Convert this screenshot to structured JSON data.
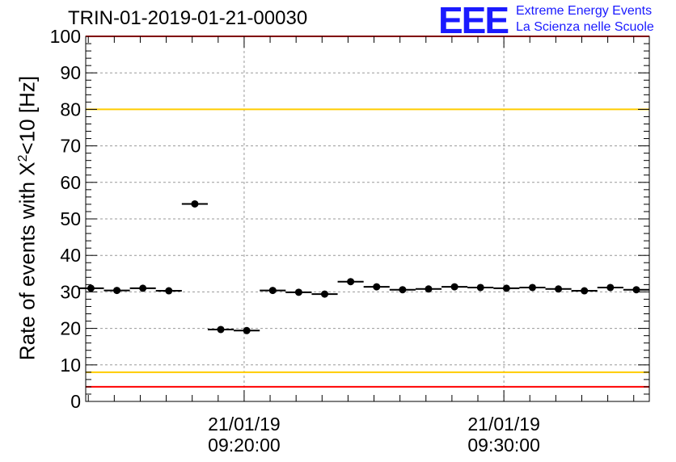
{
  "header": {
    "title": "TRIN-01-2019-01-21-00030",
    "logo_mark": "EEE",
    "logo_line1": "Extreme Energy Events",
    "logo_line2": "La Scienza nelle Scuole"
  },
  "chart_data": {
    "type": "scatter",
    "title": "TRIN-01-2019-01-21-00030",
    "ylabel_prefix": "Rate of events with X",
    "ylabel_sup": "2",
    "ylabel_suffix": "<10 [Hz]",
    "xlabel": "",
    "ylim": [
      0,
      100
    ],
    "yticks": [
      0,
      10,
      20,
      30,
      40,
      50,
      60,
      70,
      80,
      90,
      100
    ],
    "xlim_minutes": [
      13.9,
      35.6
    ],
    "x_tick_labels": [
      {
        "minute": 20,
        "date": "21/01/19",
        "time": "09:20:00"
      },
      {
        "minute": 30,
        "date": "21/01/19",
        "time": "09:30:00"
      }
    ],
    "grid": true,
    "bin_width_minutes": 1,
    "points": [
      {
        "minute": 14.1,
        "value": 31.0
      },
      {
        "minute": 15.1,
        "value": 30.4
      },
      {
        "minute": 16.1,
        "value": 31.0
      },
      {
        "minute": 17.1,
        "value": 30.3
      },
      {
        "minute": 18.1,
        "value": 54.1
      },
      {
        "minute": 19.1,
        "value": 19.7
      },
      {
        "minute": 20.1,
        "value": 19.4
      },
      {
        "minute": 21.1,
        "value": 30.4
      },
      {
        "minute": 22.1,
        "value": 29.9
      },
      {
        "minute": 23.1,
        "value": 29.4
      },
      {
        "minute": 24.1,
        "value": 32.8
      },
      {
        "minute": 25.1,
        "value": 31.4
      },
      {
        "minute": 26.1,
        "value": 30.6
      },
      {
        "minute": 27.1,
        "value": 30.8
      },
      {
        "minute": 28.1,
        "value": 31.4
      },
      {
        "minute": 29.1,
        "value": 31.2
      },
      {
        "minute": 30.1,
        "value": 31.0
      },
      {
        "minute": 31.1,
        "value": 31.2
      },
      {
        "minute": 32.1,
        "value": 30.8
      },
      {
        "minute": 33.1,
        "value": 30.3
      },
      {
        "minute": 34.1,
        "value": 31.2
      },
      {
        "minute": 35.1,
        "value": 30.6
      }
    ],
    "reference_lines": [
      {
        "value": 100,
        "color": "#ff0000"
      },
      {
        "value": 80,
        "color": "#ffcc00"
      },
      {
        "value": 8,
        "color": "#ffcc00"
      },
      {
        "value": 4,
        "color": "#ff0000"
      }
    ]
  }
}
